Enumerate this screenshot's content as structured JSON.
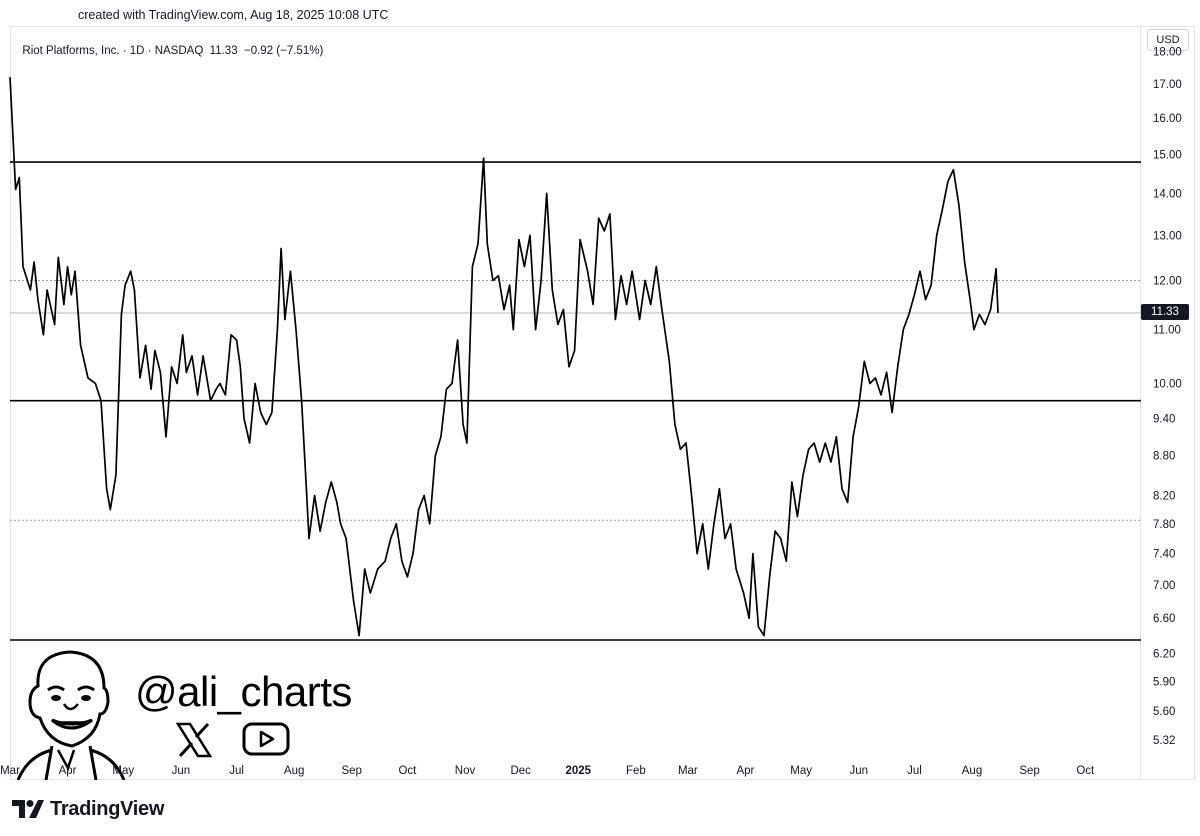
{
  "header": {
    "credit": "created with TradingView.com, Aug 18, 2025 10:08 UTC"
  },
  "symbol": {
    "name": "Riot Platforms, Inc.",
    "interval": "1D",
    "exchange": "NASDAQ",
    "price": "11.33",
    "change": "−0.92 (−7.51%)"
  },
  "currency": "USD",
  "last_price_tag": "11.33",
  "branding": {
    "handle": "@ali_charts",
    "logo_text": "TradingView"
  },
  "icons": {
    "x": "x-logo-icon",
    "youtube": "youtube-icon",
    "avatar": "caricature-avatar-icon",
    "tradingview": "tradingview-logo-icon"
  },
  "colors": {
    "line": "#000000",
    "grid_dashed": "#9598a1",
    "axis_text": "#131722"
  },
  "chart_data": {
    "type": "line",
    "title": "",
    "xlabel": "",
    "ylabel": "",
    "y_scale": "log",
    "ylim": [
      5.0,
      18.5
    ],
    "y_ticks": [
      "5.32",
      "5.60",
      "5.90",
      "6.20",
      "6.60",
      "7.00",
      "7.40",
      "7.80",
      "8.20",
      "8.80",
      "9.40",
      "10.00",
      "11.00",
      "12.00",
      "13.00",
      "14.00",
      "15.00",
      "16.00",
      "17.00",
      "18.00"
    ],
    "x_ticks": [
      "Mar",
      "Apr",
      "May",
      "Jun",
      "Jul",
      "Aug",
      "Sep",
      "Oct",
      "Nov",
      "Dec",
      "2025",
      "Feb",
      "Mar",
      "Apr",
      "May",
      "Jun",
      "Jul",
      "Aug",
      "Sep",
      "Oct"
    ],
    "x_range": [
      "2024-03-01",
      "2025-10-31"
    ],
    "series": [
      {
        "points": [
          [
            "2024-03-01",
            17.2
          ],
          [
            "2024-03-04",
            14.1
          ],
          [
            "2024-03-06",
            14.4
          ],
          [
            "2024-03-08",
            12.3
          ],
          [
            "2024-03-12",
            11.8
          ],
          [
            "2024-03-14",
            12.4
          ],
          [
            "2024-03-16",
            11.6
          ],
          [
            "2024-03-19",
            10.9
          ],
          [
            "2024-03-21",
            11.8
          ],
          [
            "2024-03-25",
            11.1
          ],
          [
            "2024-03-27",
            12.5
          ],
          [
            "2024-03-30",
            11.5
          ],
          [
            "2024-04-01",
            12.3
          ],
          [
            "2024-04-03",
            11.7
          ],
          [
            "2024-04-05",
            12.2
          ],
          [
            "2024-04-08",
            10.7
          ],
          [
            "2024-04-12",
            10.1
          ],
          [
            "2024-04-16",
            10.0
          ],
          [
            "2024-04-19",
            9.7
          ],
          [
            "2024-04-22",
            8.3
          ],
          [
            "2024-04-24",
            8.0
          ],
          [
            "2024-04-27",
            8.5
          ],
          [
            "2024-04-30",
            11.3
          ],
          [
            "2024-05-02",
            11.9
          ],
          [
            "2024-05-05",
            12.2
          ],
          [
            "2024-05-07",
            11.8
          ],
          [
            "2024-05-10",
            10.1
          ],
          [
            "2024-05-13",
            10.7
          ],
          [
            "2024-05-16",
            9.9
          ],
          [
            "2024-05-18",
            10.6
          ],
          [
            "2024-05-21",
            10.2
          ],
          [
            "2024-05-24",
            9.1
          ],
          [
            "2024-05-27",
            10.3
          ],
          [
            "2024-05-30",
            10.0
          ],
          [
            "2024-06-02",
            10.9
          ],
          [
            "2024-06-04",
            10.2
          ],
          [
            "2024-06-07",
            10.5
          ],
          [
            "2024-06-10",
            9.8
          ],
          [
            "2024-06-13",
            10.5
          ],
          [
            "2024-06-17",
            9.7
          ],
          [
            "2024-06-20",
            9.9
          ],
          [
            "2024-06-22",
            10.0
          ],
          [
            "2024-06-25",
            9.8
          ],
          [
            "2024-06-28",
            10.9
          ],
          [
            "2024-07-01",
            10.8
          ],
          [
            "2024-07-03",
            10.3
          ],
          [
            "2024-07-05",
            9.4
          ],
          [
            "2024-07-08",
            9.0
          ],
          [
            "2024-07-11",
            10.0
          ],
          [
            "2024-07-14",
            9.5
          ],
          [
            "2024-07-17",
            9.3
          ],
          [
            "2024-07-20",
            9.5
          ],
          [
            "2024-07-23",
            11.0
          ],
          [
            "2024-07-25",
            12.7
          ],
          [
            "2024-07-27",
            11.2
          ],
          [
            "2024-07-30",
            12.2
          ],
          [
            "2024-08-02",
            11.0
          ],
          [
            "2024-08-05",
            9.7
          ],
          [
            "2024-08-07",
            8.6
          ],
          [
            "2024-08-09",
            7.6
          ],
          [
            "2024-08-12",
            8.2
          ],
          [
            "2024-08-15",
            7.7
          ],
          [
            "2024-08-18",
            8.1
          ],
          [
            "2024-08-21",
            8.4
          ],
          [
            "2024-08-24",
            8.1
          ],
          [
            "2024-08-26",
            7.8
          ],
          [
            "2024-08-29",
            7.6
          ],
          [
            "2024-09-02",
            6.8
          ],
          [
            "2024-09-05",
            6.4
          ],
          [
            "2024-09-08",
            7.2
          ],
          [
            "2024-09-11",
            6.9
          ],
          [
            "2024-09-15",
            7.2
          ],
          [
            "2024-09-19",
            7.3
          ],
          [
            "2024-09-22",
            7.6
          ],
          [
            "2024-09-25",
            7.8
          ],
          [
            "2024-09-28",
            7.3
          ],
          [
            "2024-10-01",
            7.1
          ],
          [
            "2024-10-04",
            7.4
          ],
          [
            "2024-10-07",
            8.0
          ],
          [
            "2024-10-10",
            8.2
          ],
          [
            "2024-10-13",
            7.8
          ],
          [
            "2024-10-16",
            8.8
          ],
          [
            "2024-10-19",
            9.1
          ],
          [
            "2024-10-22",
            9.9
          ],
          [
            "2024-10-25",
            10.0
          ],
          [
            "2024-10-28",
            10.8
          ],
          [
            "2024-10-31",
            9.3
          ],
          [
            "2024-11-02",
            9.0
          ],
          [
            "2024-11-05",
            12.3
          ],
          [
            "2024-11-08",
            12.8
          ],
          [
            "2024-11-11",
            14.9
          ],
          [
            "2024-11-13",
            12.8
          ],
          [
            "2024-11-16",
            12.0
          ],
          [
            "2024-11-19",
            12.1
          ],
          [
            "2024-11-22",
            11.4
          ],
          [
            "2024-11-25",
            11.9
          ],
          [
            "2024-11-27",
            11.0
          ],
          [
            "2024-11-30",
            12.9
          ],
          [
            "2024-12-03",
            12.3
          ],
          [
            "2024-12-06",
            13.0
          ],
          [
            "2024-12-09",
            11.0
          ],
          [
            "2024-12-12",
            12.0
          ],
          [
            "2024-12-15",
            14.0
          ],
          [
            "2024-12-18",
            11.8
          ],
          [
            "2024-12-21",
            11.1
          ],
          [
            "2024-12-24",
            11.4
          ],
          [
            "2024-12-27",
            10.3
          ],
          [
            "2024-12-30",
            10.6
          ],
          [
            "2025-01-02",
            12.9
          ],
          [
            "2025-01-06",
            12.2
          ],
          [
            "2025-01-09",
            11.5
          ],
          [
            "2025-01-12",
            13.4
          ],
          [
            "2025-01-15",
            13.1
          ],
          [
            "2025-01-18",
            13.5
          ],
          [
            "2025-01-21",
            11.2
          ],
          [
            "2025-01-24",
            12.1
          ],
          [
            "2025-01-27",
            11.5
          ],
          [
            "2025-01-30",
            12.2
          ],
          [
            "2025-02-03",
            11.2
          ],
          [
            "2025-02-06",
            12.0
          ],
          [
            "2025-02-09",
            11.5
          ],
          [
            "2025-02-12",
            12.3
          ],
          [
            "2025-02-15",
            11.4
          ],
          [
            "2025-02-19",
            10.4
          ],
          [
            "2025-02-22",
            9.3
          ],
          [
            "2025-02-25",
            8.9
          ],
          [
            "2025-02-28",
            9.0
          ],
          [
            "2025-03-03",
            8.2
          ],
          [
            "2025-03-06",
            7.4
          ],
          [
            "2025-03-09",
            7.8
          ],
          [
            "2025-03-12",
            7.2
          ],
          [
            "2025-03-15",
            7.8
          ],
          [
            "2025-03-18",
            8.3
          ],
          [
            "2025-03-21",
            7.6
          ],
          [
            "2025-03-24",
            7.8
          ],
          [
            "2025-03-27",
            7.2
          ],
          [
            "2025-03-31",
            6.9
          ],
          [
            "2025-04-03",
            6.6
          ],
          [
            "2025-04-05",
            7.4
          ],
          [
            "2025-04-08",
            6.5
          ],
          [
            "2025-04-11",
            6.4
          ],
          [
            "2025-04-14",
            7.1
          ],
          [
            "2025-04-17",
            7.7
          ],
          [
            "2025-04-20",
            7.6
          ],
          [
            "2025-04-23",
            7.3
          ],
          [
            "2025-04-26",
            8.4
          ],
          [
            "2025-04-29",
            7.9
          ],
          [
            "2025-05-02",
            8.5
          ],
          [
            "2025-05-05",
            8.9
          ],
          [
            "2025-05-08",
            9.0
          ],
          [
            "2025-05-11",
            8.7
          ],
          [
            "2025-05-14",
            9.0
          ],
          [
            "2025-05-17",
            8.7
          ],
          [
            "2025-05-20",
            9.1
          ],
          [
            "2025-05-23",
            8.3
          ],
          [
            "2025-05-26",
            8.1
          ],
          [
            "2025-05-29",
            9.1
          ],
          [
            "2025-06-01",
            9.6
          ],
          [
            "2025-06-04",
            10.4
          ],
          [
            "2025-06-07",
            10.0
          ],
          [
            "2025-06-10",
            10.1
          ],
          [
            "2025-06-13",
            9.8
          ],
          [
            "2025-06-16",
            10.2
          ],
          [
            "2025-06-19",
            9.5
          ],
          [
            "2025-06-22",
            10.3
          ],
          [
            "2025-06-25",
            11.0
          ],
          [
            "2025-06-28",
            11.3
          ],
          [
            "2025-07-01",
            11.7
          ],
          [
            "2025-07-04",
            12.2
          ],
          [
            "2025-07-07",
            11.6
          ],
          [
            "2025-07-10",
            11.9
          ],
          [
            "2025-07-13",
            13.0
          ],
          [
            "2025-07-16",
            13.6
          ],
          [
            "2025-07-19",
            14.3
          ],
          [
            "2025-07-22",
            14.6
          ],
          [
            "2025-07-25",
            13.7
          ],
          [
            "2025-07-28",
            12.4
          ],
          [
            "2025-07-31",
            11.6
          ],
          [
            "2025-08-02",
            11.0
          ],
          [
            "2025-08-05",
            11.3
          ],
          [
            "2025-08-08",
            11.1
          ],
          [
            "2025-08-11",
            11.4
          ],
          [
            "2025-08-14",
            12.25
          ],
          [
            "2025-08-15",
            11.33
          ]
        ]
      }
    ],
    "horizontal_levels": [
      {
        "value": 14.8,
        "style": "solid"
      },
      {
        "value": 12.0,
        "style": "dashed"
      },
      {
        "value": 11.33,
        "style": "solid-light"
      },
      {
        "value": 9.7,
        "style": "solid"
      },
      {
        "value": 7.85,
        "style": "dashed"
      },
      {
        "value": 6.35,
        "style": "solid"
      }
    ]
  }
}
